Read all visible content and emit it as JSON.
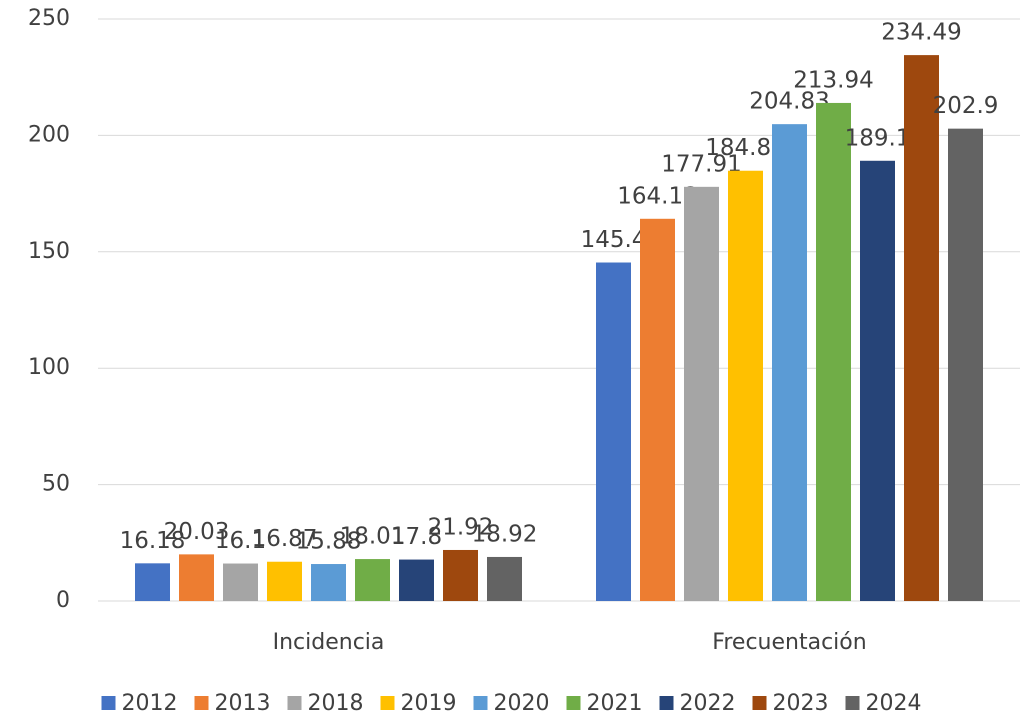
{
  "chart_data": {
    "type": "bar",
    "categories": [
      "Incidencia",
      "Frecuentación"
    ],
    "series": [
      {
        "name": "2012",
        "color": "#4472c4",
        "values": [
          16.18,
          145.4
        ]
      },
      {
        "name": "2013",
        "color": "#ed7d31",
        "values": [
          20.03,
          164.18
        ]
      },
      {
        "name": "2018",
        "color": "#a5a5a5",
        "values": [
          16.1,
          177.91
        ]
      },
      {
        "name": "2019",
        "color": "#ffc000",
        "values": [
          16.87,
          184.82
        ]
      },
      {
        "name": "2020",
        "color": "#5b9bd5",
        "values": [
          15.88,
          204.83
        ]
      },
      {
        "name": "2021",
        "color": "#70ad47",
        "values": [
          18.01,
          213.94
        ]
      },
      {
        "name": "2022",
        "color": "#264478",
        "values": [
          17.8,
          189.1
        ]
      },
      {
        "name": "2023",
        "color": "#9e480e",
        "values": [
          21.92,
          234.49
        ]
      },
      {
        "name": "2024",
        "color": "#636363",
        "values": [
          18.92,
          202.9
        ]
      }
    ],
    "ylim": [
      0,
      250
    ],
    "yticks": [
      0,
      50,
      100,
      150,
      200,
      250
    ],
    "grid": true,
    "legend": "bottom"
  }
}
